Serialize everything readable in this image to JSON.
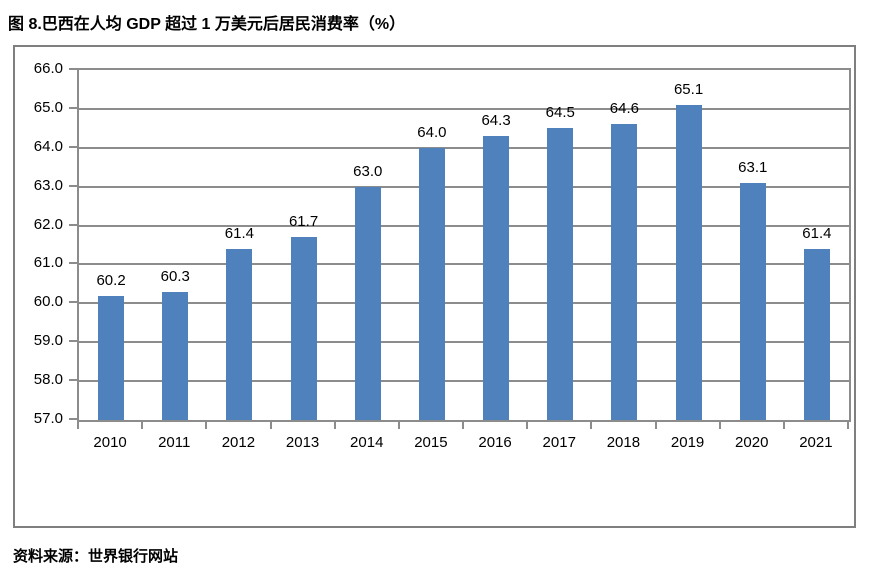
{
  "page": {
    "title": "图 8.巴西在人均 GDP 超过 1 万美元后居民消费率（%）",
    "source": "资料来源：世界银行网站"
  },
  "chart_data": {
    "type": "bar",
    "title": "图 8.巴西在人均 GDP 超过 1 万美元后居民消费率（%）",
    "categories": [
      "2010",
      "2011",
      "2012",
      "2013",
      "2014",
      "2015",
      "2016",
      "2017",
      "2018",
      "2019",
      "2020",
      "2021"
    ],
    "values": [
      60.2,
      60.3,
      61.4,
      61.7,
      63.0,
      64.0,
      64.3,
      64.5,
      64.6,
      65.1,
      63.1,
      61.4
    ],
    "value_labels": [
      "60.2",
      "60.3",
      "61.4",
      "61.7",
      "63.0",
      "64.0",
      "64.3",
      "64.5",
      "64.6",
      "65.1",
      "63.1",
      "61.4"
    ],
    "xlabel": "",
    "ylabel": "",
    "ylim": [
      57.0,
      66.0
    ],
    "ytick_step": 1.0,
    "ytick_labels": [
      "66.0",
      "65.0",
      "64.0",
      "63.0",
      "62.0",
      "61.0",
      "60.0",
      "59.0",
      "58.0",
      "57.0"
    ],
    "grid": true,
    "legend": "none",
    "bar_color": "#4f81bd",
    "grid_color": "#8c8c8c",
    "text_color": "#000000"
  }
}
